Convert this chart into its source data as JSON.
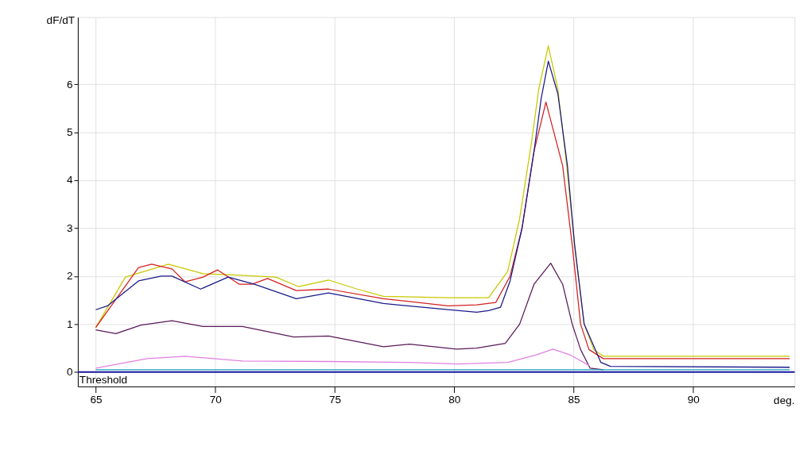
{
  "chart_data": {
    "type": "line",
    "ylabel": "dF/dT",
    "xlabel": "deg.",
    "xlim": [
      64.25,
      94.25
    ],
    "ylim": [
      -0.3,
      7.4
    ],
    "xticks": [
      65,
      70,
      75,
      80,
      85,
      90
    ],
    "yticks": [
      0,
      1,
      2,
      3,
      4,
      5,
      6
    ],
    "grid": true,
    "legend": false,
    "marker": "none",
    "line_style": "solid",
    "ref_lines": [
      {
        "axis": "y",
        "value": 0,
        "label": "Threshold",
        "color": "#1a1aa0"
      }
    ],
    "series": [
      {
        "color": "#c8c800",
        "x": [
          65.0,
          66.24,
          68.04,
          69.49,
          70.54,
          72.54,
          73.49,
          74.74,
          75.94,
          77.04,
          79.74,
          81.44,
          82.24,
          82.74,
          83.24,
          83.54,
          83.94,
          84.34,
          84.71,
          85.04,
          85.44,
          85.84,
          86.24,
          94.04
        ],
        "values": [
          0.93,
          1.98,
          2.25,
          2.05,
          2.03,
          1.98,
          1.78,
          1.92,
          1.73,
          1.58,
          1.55,
          1.55,
          2.1,
          3.2,
          4.8,
          5.9,
          6.8,
          5.9,
          4.3,
          2.65,
          1.0,
          0.47,
          0.33,
          0.33
        ]
      },
      {
        "color": "#d42020",
        "x": [
          65.0,
          66.79,
          67.34,
          68.19,
          68.74,
          69.49,
          70.09,
          71.01,
          71.54,
          72.19,
          73.39,
          74.74,
          77.04,
          79.74,
          80.94,
          81.74,
          82.34,
          82.84,
          83.34,
          83.84,
          84.54,
          84.94,
          85.29,
          85.64,
          86.24,
          94.04
        ],
        "values": [
          0.93,
          2.18,
          2.25,
          2.15,
          1.88,
          1.98,
          2.13,
          1.83,
          1.83,
          1.95,
          1.7,
          1.73,
          1.53,
          1.38,
          1.4,
          1.45,
          2.0,
          3.0,
          4.6,
          5.63,
          4.3,
          2.65,
          1.0,
          0.47,
          0.28,
          0.28
        ]
      },
      {
        "color": "#1a1a8c",
        "x": [
          65.0,
          65.49,
          66.24,
          66.79,
          67.74,
          68.19,
          69.39,
          70.54,
          71.64,
          73.39,
          74.74,
          77.04,
          79.74,
          80.94,
          81.44,
          81.94,
          82.34,
          82.84,
          83.34,
          83.64,
          83.94,
          84.34,
          84.74,
          85.04,
          85.44,
          86.14,
          86.54,
          94.04
        ],
        "values": [
          1.3,
          1.38,
          1.68,
          1.9,
          2.0,
          2.0,
          1.73,
          1.98,
          1.83,
          1.53,
          1.65,
          1.43,
          1.3,
          1.25,
          1.28,
          1.35,
          1.9,
          3.0,
          4.6,
          5.7,
          6.48,
          5.8,
          4.3,
          2.65,
          1.0,
          0.2,
          0.12,
          0.1
        ]
      },
      {
        "color": "#5a1a5a",
        "x": [
          65.0,
          65.84,
          66.89,
          68.19,
          69.49,
          71.14,
          73.29,
          74.74,
          77.04,
          78.14,
          80.09,
          80.94,
          82.14,
          82.74,
          83.34,
          84.04,
          84.54,
          84.94,
          85.29,
          85.69,
          86.24
        ],
        "values": [
          0.88,
          0.8,
          0.98,
          1.07,
          0.95,
          0.95,
          0.73,
          0.75,
          0.53,
          0.58,
          0.48,
          0.5,
          0.6,
          1.0,
          1.83,
          2.27,
          1.83,
          1.0,
          0.47,
          0.08,
          0.05
        ]
      },
      {
        "color": "#e080e0",
        "x": [
          65.0,
          67.14,
          68.74,
          71.14,
          74.74,
          78.14,
          80.14,
          82.24,
          83.44,
          84.14,
          84.84,
          85.64
        ],
        "values": [
          0.08,
          0.28,
          0.33,
          0.23,
          0.22,
          0.2,
          0.17,
          0.2,
          0.36,
          0.48,
          0.36,
          0.14
        ]
      },
      {
        "color": "#20a0c0",
        "x": [
          65.0,
          69.74,
          74.74,
          79.74,
          84.74,
          89.74,
          94.04
        ],
        "values": [
          0.05,
          0.05,
          0.05,
          0.05,
          0.05,
          0.05,
          0.05
        ]
      }
    ]
  }
}
